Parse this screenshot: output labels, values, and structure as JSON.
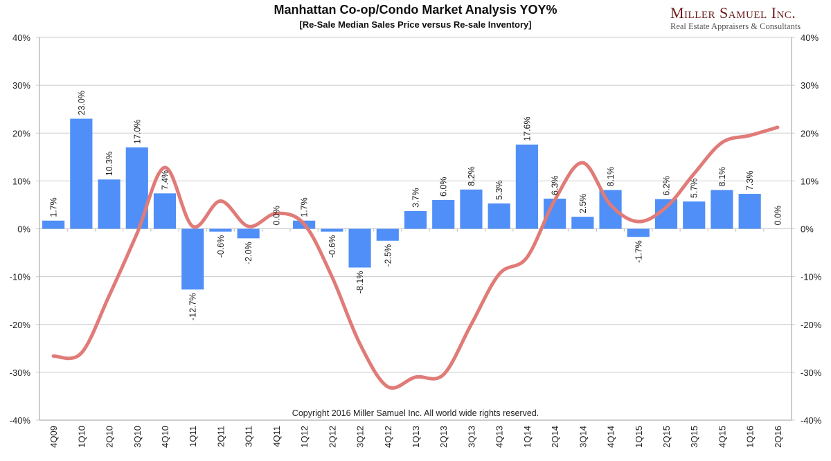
{
  "header": {
    "title": "Manhattan Co-op/Condo Market Analysis YOY%",
    "subtitle": "[Re-Sale Median Sales Price versus Re-sale Inventory]",
    "brand_name": "Miller Samuel Inc.",
    "brand_tagline": "Real Estate Appraisers & Consultants"
  },
  "copyright": "Copyright 2016 Miller Samuel Inc.  All world wide rights reserved.",
  "colors": {
    "bar": "#4f8ff7",
    "line": "#e07b78",
    "grid": "#cccccc",
    "brand": "#6b1c1c"
  },
  "chart_data": {
    "type": "bar",
    "title": "Manhattan Co-op/Condo Market Analysis YOY%",
    "subtitle": "[Re-Sale Median Sales Price versus Re-sale Inventory]",
    "xlabel": "",
    "ylabel": "",
    "ylim": [
      -40,
      40
    ],
    "y2lim": [
      -40,
      40
    ],
    "yticks": [
      "40%",
      "30%",
      "20%",
      "10%",
      "0%",
      "-10%",
      "-20%",
      "-30%",
      "-40%"
    ],
    "ytick_values": [
      40,
      30,
      20,
      10,
      0,
      -10,
      -20,
      -30,
      -40
    ],
    "grid": true,
    "categories": [
      "4Q09",
      "1Q10",
      "2Q10",
      "3Q10",
      "4Q10",
      "1Q11",
      "2Q11",
      "3Q11",
      "4Q11",
      "1Q12",
      "2Q12",
      "3Q12",
      "4Q12",
      "1Q13",
      "2Q13",
      "3Q13",
      "4Q13",
      "1Q14",
      "2Q14",
      "3Q14",
      "4Q14",
      "1Q15",
      "2Q15",
      "3Q15",
      "4Q15",
      "1Q16",
      "2Q16"
    ],
    "series": [
      {
        "name": "Re-Sale Median Sales Price YOY%",
        "type": "bar",
        "axis": "left",
        "values": [
          1.7,
          23.0,
          10.3,
          17.0,
          7.4,
          -12.7,
          -0.6,
          -2.0,
          0.0,
          1.7,
          -0.6,
          -8.1,
          -2.5,
          3.7,
          6.0,
          8.2,
          5.3,
          17.6,
          6.3,
          2.5,
          8.1,
          -1.7,
          6.2,
          5.7,
          8.1,
          7.3,
          0.0
        ],
        "labels": [
          "1.7%",
          "23.0%",
          "10.3%",
          "17.0%",
          "7.4%",
          "-12.7%",
          "-0.6%",
          "-2.0%",
          "0.0%",
          "1.7%",
          "-0.6%",
          "-8.1%",
          "-2.5%",
          "3.7%",
          "6.0%",
          "8.2%",
          "5.3%",
          "17.6%",
          "6.3%",
          "2.5%",
          "8.1%",
          "-1.7%",
          "6.2%",
          "5.7%",
          "8.1%",
          "7.3%",
          "0.0%"
        ]
      },
      {
        "name": "Re-sale Inventory YOY%",
        "type": "line",
        "axis": "right",
        "values": [
          -26.6,
          -26.0,
          -14.0,
          -1.0,
          12.8,
          0.5,
          5.8,
          0.5,
          3.2,
          1.0,
          -10.0,
          -24.0,
          -33.0,
          -31.0,
          -30.5,
          -20.0,
          -9.5,
          -6.0,
          6.0,
          13.8,
          5.0,
          1.5,
          4.5,
          11.5,
          18.0,
          19.5,
          21.2
        ]
      }
    ]
  }
}
